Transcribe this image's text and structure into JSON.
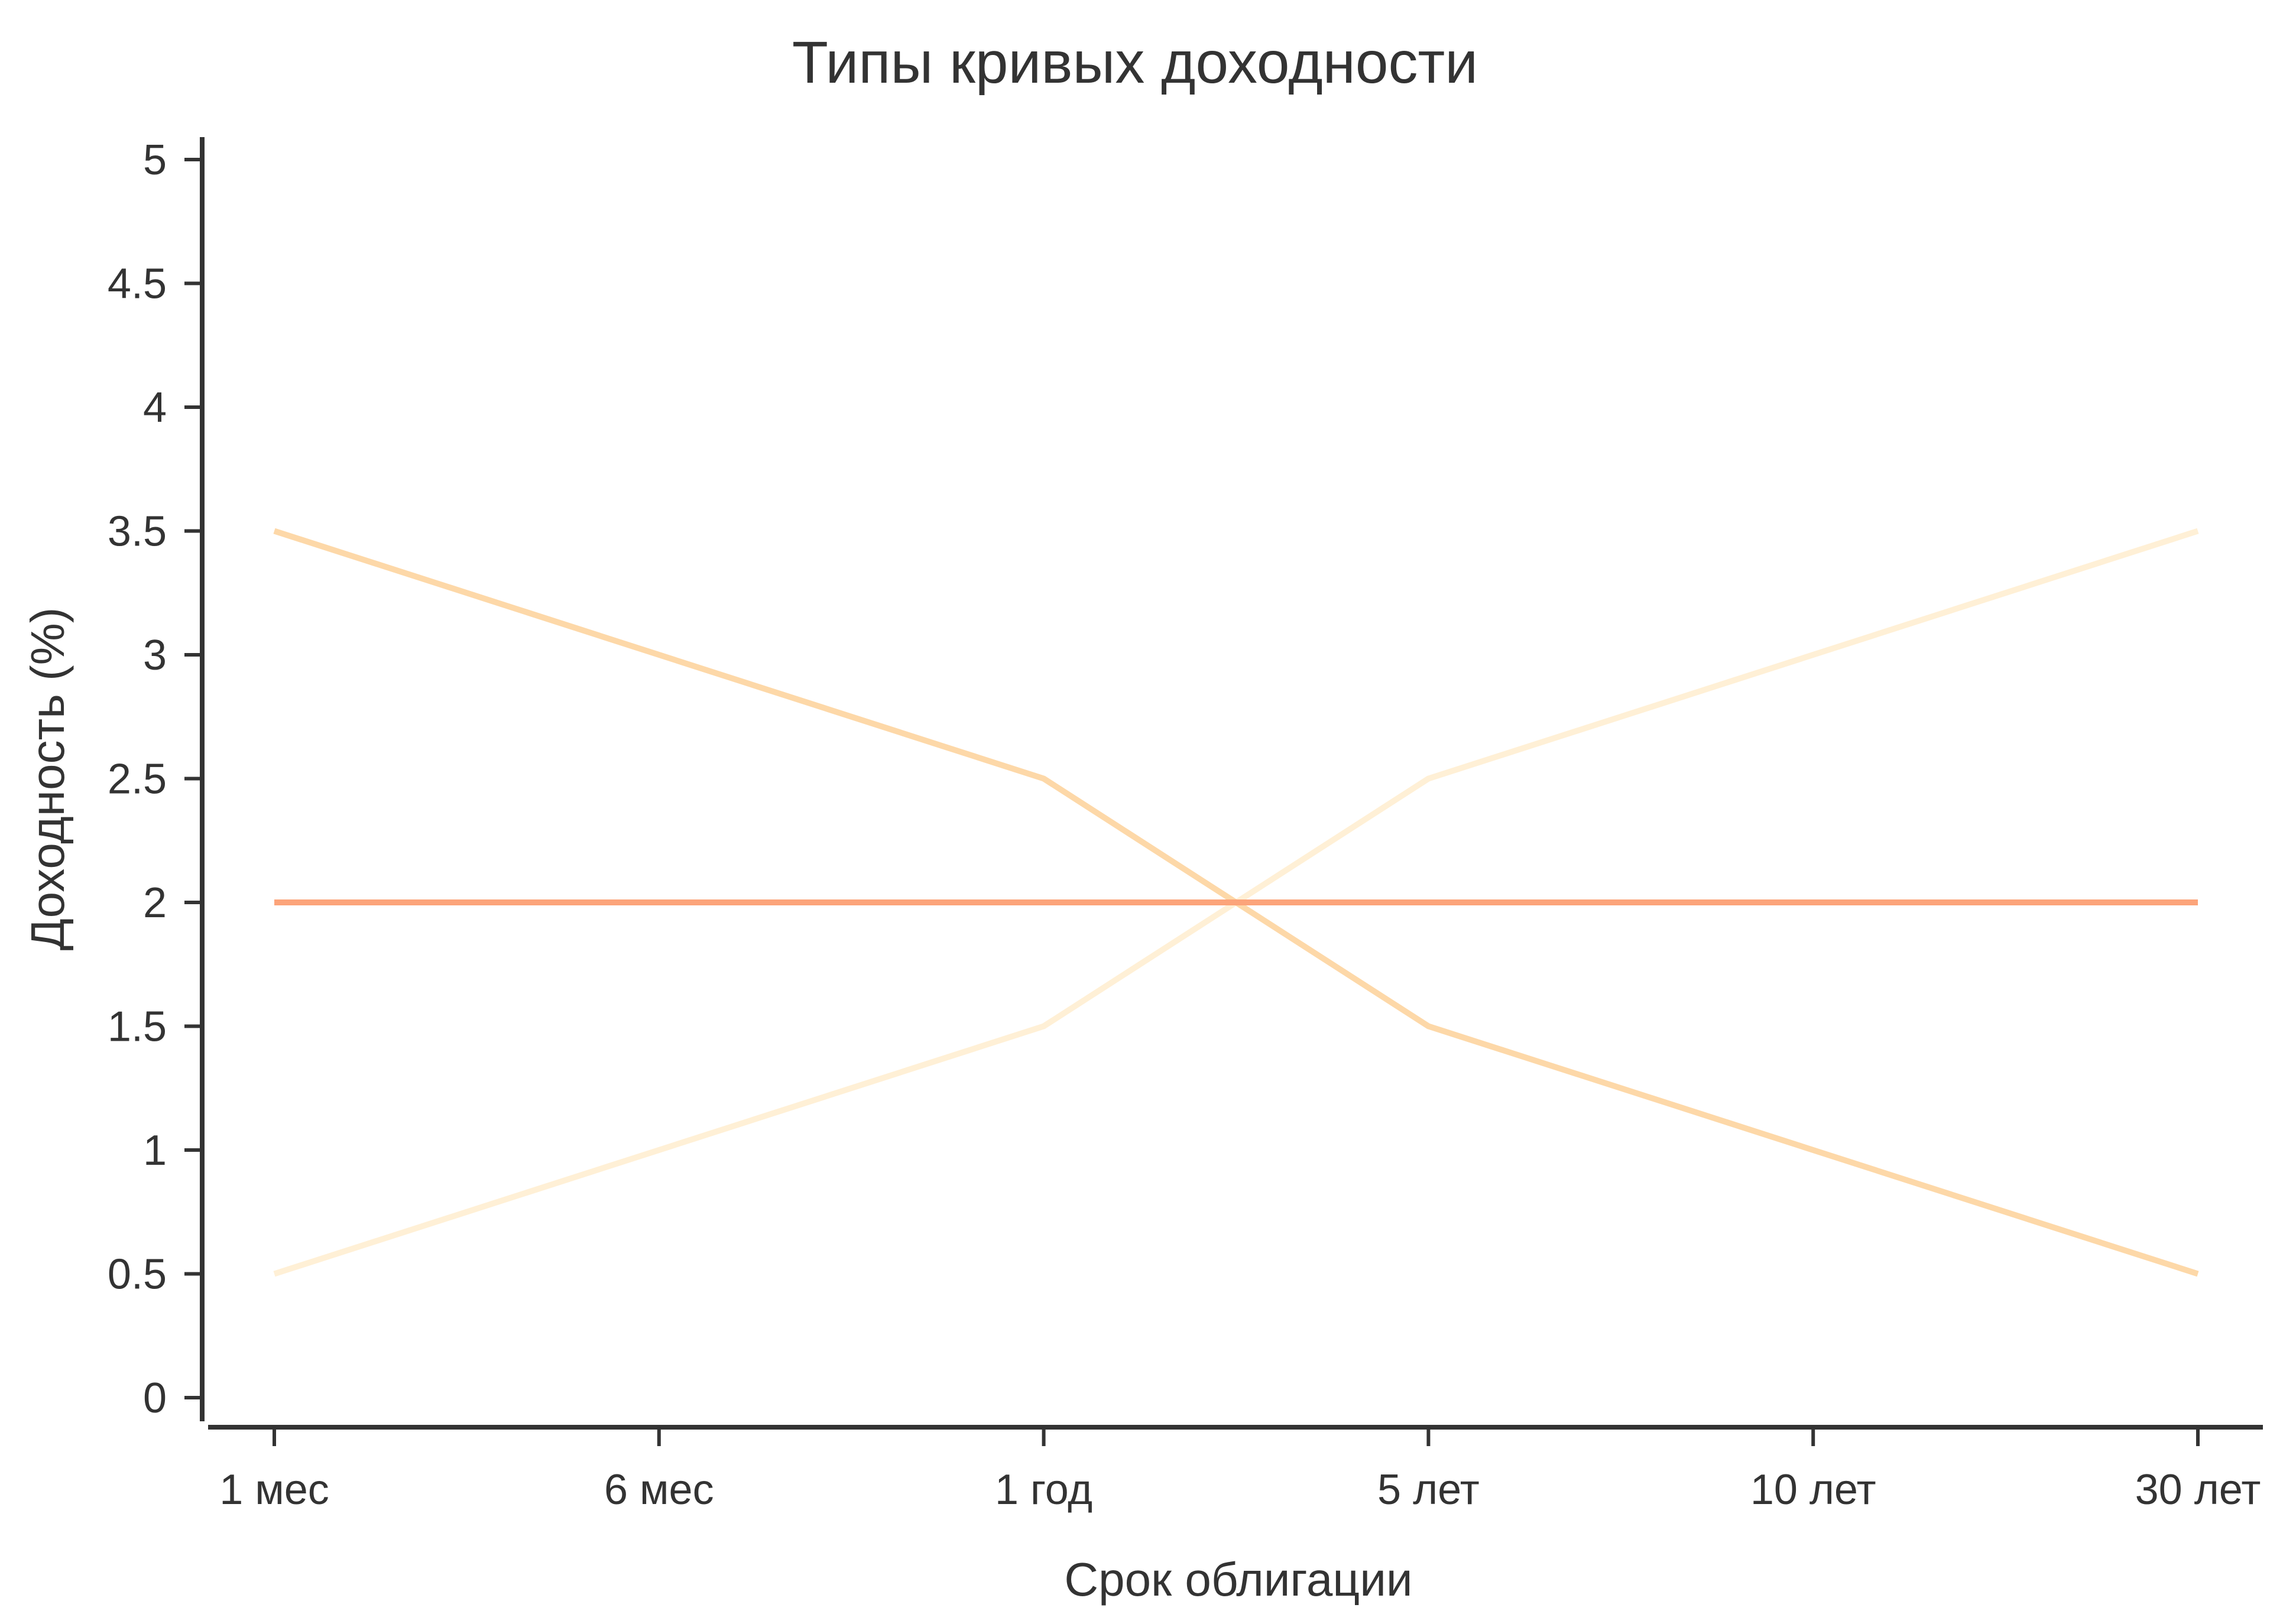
{
  "chart_data": {
    "type": "line",
    "title": "Типы кривых доходности",
    "xlabel": "Срок облигации",
    "ylabel": "Доходность (%)",
    "categories": [
      "1 мес",
      "6 мес",
      "1 год",
      "5 лет",
      "10 лет",
      "30 лет"
    ],
    "x_plot_positions": [
      0,
      1,
      2,
      3,
      4,
      5
    ],
    "ylim": [
      0,
      5
    ],
    "yticks": [
      0,
      0.5,
      1,
      1.5,
      2,
      2.5,
      3,
      3.5,
      4,
      4.5,
      5
    ],
    "ytick_labels": [
      "0",
      "0.5",
      "1",
      "1.5",
      "2",
      "2.5",
      "3",
      "3.5",
      "4",
      "4.5",
      "5"
    ],
    "grid": false,
    "legend": "none",
    "series": [
      {
        "x": [
          0,
          2,
          3,
          5
        ],
        "values": [
          0.5,
          1.5,
          2.5,
          3.5
        ],
        "color": "#fff0d6"
      },
      {
        "x": [
          0,
          2,
          3,
          5
        ],
        "values": [
          3.5,
          2.5,
          1.5,
          0.5
        ],
        "color": "#fdd8a8"
      },
      {
        "x": [
          0,
          5
        ],
        "values": [
          2,
          2
        ],
        "color": "#fca47a"
      }
    ],
    "axis_color": "#333333"
  }
}
